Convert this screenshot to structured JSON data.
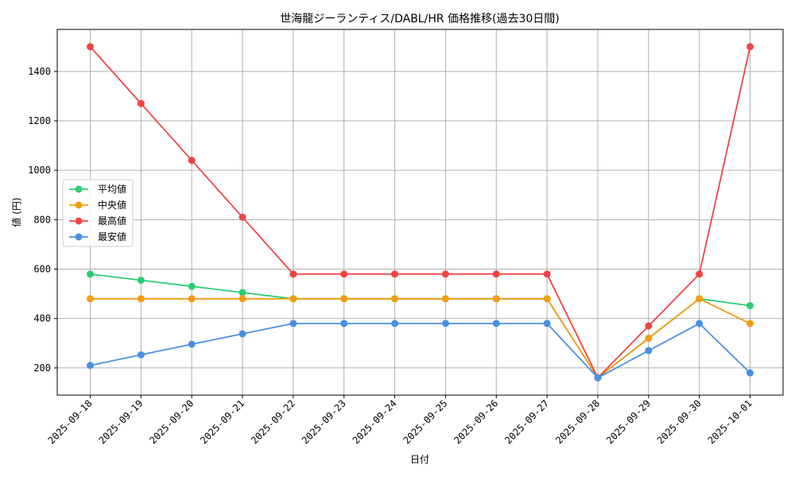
{
  "chart_data": {
    "type": "line",
    "title": "世海龍ジーランティス/DABL/HR 価格推移(過去30日間)",
    "xlabel": "日付",
    "ylabel": "値 (円)",
    "categories": [
      "2025-09-18",
      "2025-09-19",
      "2025-09-20",
      "2025-09-21",
      "2025-09-22",
      "2025-09-23",
      "2025-09-24",
      "2025-09-25",
      "2025-09-26",
      "2025-09-27",
      "2025-09-28",
      "2025-09-29",
      "2025-09-30",
      "2025-10-01"
    ],
    "ylim": [
      90,
      1570
    ],
    "yticks": [
      200,
      400,
      600,
      800,
      1000,
      1200,
      1400
    ],
    "grid": true,
    "legend_position": "center-left",
    "series": [
      {
        "name": "平均値",
        "color": "#2ecc71",
        "values": [
          580,
          555,
          530,
          505,
          480,
          480,
          480,
          480,
          480,
          480,
          160,
          320,
          480,
          452
        ]
      },
      {
        "name": "中央値",
        "color": "#f39c12",
        "values": [
          480,
          480,
          480,
          480,
          480,
          480,
          480,
          480,
          480,
          480,
          160,
          320,
          480,
          380
        ]
      },
      {
        "name": "最高値",
        "color": "#ef4444",
        "values": [
          1500,
          1270,
          1040,
          810,
          580,
          580,
          580,
          580,
          580,
          580,
          160,
          370,
          580,
          1500
        ]
      },
      {
        "name": "最安値",
        "color": "#4a90e2",
        "values": [
          210,
          253,
          296,
          338,
          380,
          380,
          380,
          380,
          380,
          380,
          160,
          270,
          380,
          180
        ]
      }
    ]
  }
}
